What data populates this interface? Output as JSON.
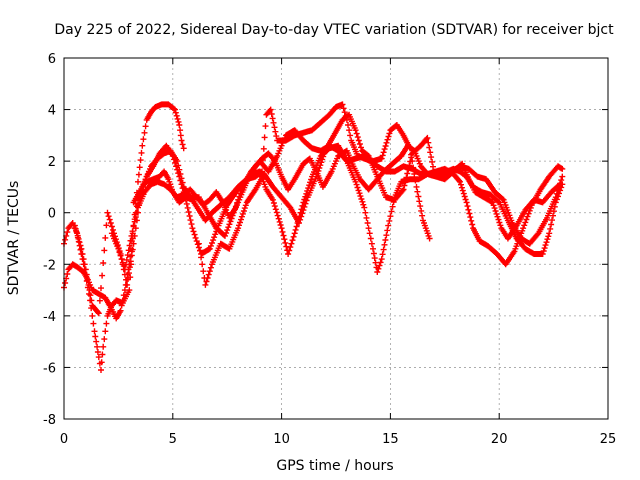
{
  "chart_data": {
    "type": "scatter",
    "title": "Day 225 of 2022, Sidereal Day-to-day VTEC variation (SDTVAR) for receiver bjct",
    "xlabel": "GPS time / hours",
    "ylabel": "SDTVAR / TECUs",
    "xlim": [
      0,
      25
    ],
    "ylim": [
      -8,
      6
    ],
    "xticks": [
      0,
      5,
      10,
      15,
      20,
      25
    ],
    "yticks": [
      -8,
      -6,
      -4,
      -2,
      0,
      2,
      4,
      6
    ],
    "xtick_labels": [
      "0",
      "5",
      "10",
      "15",
      "20",
      "25"
    ],
    "ytick_labels": [
      "-8",
      "-6",
      "-4",
      "-2",
      "0",
      "2",
      "4",
      "6"
    ],
    "grid": true,
    "marker": "+",
    "color": "#ff0000",
    "series": [
      {
        "name": "trace-1",
        "points": [
          [
            0,
            -1.2
          ],
          [
            0.2,
            -0.6
          ],
          [
            0.4,
            -0.4
          ],
          [
            0.6,
            -0.8
          ],
          [
            0.8,
            -1.6
          ],
          [
            1.0,
            -2.4
          ],
          [
            1.2,
            -3.4
          ],
          [
            1.4,
            -4.6
          ],
          [
            1.6,
            -5.6
          ],
          [
            1.7,
            -6.1
          ],
          [
            1.8,
            -5.2
          ],
          [
            2.0,
            -4.0
          ],
          [
            2.2,
            -3.6
          ],
          [
            2.4,
            -3.4
          ],
          [
            2.7,
            -3.5
          ],
          [
            3.0,
            -3.0
          ],
          [
            3.2,
            -0.5
          ],
          [
            3.4,
            1.2
          ],
          [
            3.6,
            2.6
          ],
          [
            3.8,
            3.6
          ],
          [
            4.0,
            3.9
          ],
          [
            4.2,
            4.1
          ],
          [
            4.5,
            4.2
          ],
          [
            4.8,
            4.2
          ],
          [
            5.1,
            4.0
          ],
          [
            5.3,
            3.4
          ],
          [
            5.4,
            2.8
          ],
          [
            5.5,
            2.5
          ]
        ]
      },
      {
        "name": "trace-2",
        "points": [
          [
            0,
            -2.9
          ],
          [
            0.2,
            -2.2
          ],
          [
            0.4,
            -2.0
          ],
          [
            0.6,
            -2.1
          ],
          [
            0.9,
            -2.3
          ],
          [
            1.1,
            -2.6
          ],
          [
            1.3,
            -3.0
          ],
          [
            1.5,
            -3.1
          ],
          [
            1.7,
            -3.2
          ],
          [
            1.9,
            -3.3
          ],
          [
            2.1,
            -3.6
          ],
          [
            2.4,
            -4.1
          ],
          [
            2.6,
            -3.8
          ],
          [
            2.8,
            -3.0
          ],
          [
            3.0,
            -2.0
          ],
          [
            3.2,
            -0.5
          ],
          [
            3.4,
            0.5
          ],
          [
            3.6,
            1.0
          ],
          [
            3.8,
            1.2
          ],
          [
            4.1,
            1.3
          ],
          [
            4.4,
            1.4
          ],
          [
            4.6,
            1.6
          ],
          [
            4.8,
            1.3
          ],
          [
            5.0,
            0.8
          ],
          [
            5.3,
            0.4
          ],
          [
            5.6,
            0.6
          ],
          [
            5.9,
            0.5
          ],
          [
            6.2,
            0.1
          ],
          [
            6.5,
            -0.3
          ],
          [
            6.8,
            0.0
          ],
          [
            7.2,
            0.3
          ],
          [
            7.6,
            0.6
          ],
          [
            8.0,
            1.0
          ],
          [
            8.4,
            1.3
          ],
          [
            8.8,
            1.4
          ],
          [
            9.1,
            1.6
          ],
          [
            9.3,
            3.8
          ],
          [
            9.5,
            4.0
          ],
          [
            9.8,
            2.8
          ],
          [
            10.2,
            2.8
          ],
          [
            10.6,
            3.0
          ],
          [
            11.0,
            3.1
          ],
          [
            11.4,
            3.2
          ],
          [
            11.8,
            3.5
          ],
          [
            12.2,
            3.8
          ],
          [
            12.5,
            4.1
          ],
          [
            12.8,
            4.2
          ],
          [
            13.0,
            3.6
          ],
          [
            13.2,
            2.8
          ],
          [
            13.5,
            2.2
          ],
          [
            13.8,
            2.1
          ],
          [
            14.1,
            2.0
          ],
          [
            14.4,
            1.8
          ],
          [
            14.8,
            1.6
          ],
          [
            15.2,
            1.6
          ],
          [
            15.6,
            1.8
          ],
          [
            16.0,
            1.7
          ],
          [
            16.4,
            1.5
          ],
          [
            16.8,
            1.5
          ],
          [
            17.2,
            1.5
          ],
          [
            17.6,
            1.6
          ],
          [
            17.9,
            1.7
          ],
          [
            18.2,
            1.6
          ],
          [
            18.5,
            1.4
          ],
          [
            18.8,
            1.0
          ],
          [
            19.2,
            0.8
          ],
          [
            19.6,
            0.7
          ],
          [
            20.0,
            0.4
          ],
          [
            20.4,
            -0.3
          ],
          [
            20.8,
            -1.0
          ],
          [
            21.2,
            -1.4
          ],
          [
            21.6,
            -1.6
          ],
          [
            22.0,
            -1.6
          ],
          [
            22.3,
            -0.8
          ],
          [
            22.6,
            0.4
          ],
          [
            22.9,
            1.1
          ]
        ]
      },
      {
        "name": "trace-3",
        "points": [
          [
            0.5,
            -0.5
          ],
          [
            0.8,
            -1.4
          ],
          [
            1.0,
            -2.2
          ],
          [
            1.3,
            -3.6
          ],
          [
            1.6,
            -3.9
          ],
          [
            2.0,
            0.0
          ],
          [
            2.3,
            -0.8
          ],
          [
            2.6,
            -1.6
          ],
          [
            2.9,
            -2.8
          ],
          [
            3.2,
            -1.2
          ],
          [
            3.5,
            0.6
          ],
          [
            3.8,
            1.4
          ],
          [
            4.1,
            1.8
          ],
          [
            4.4,
            2.3
          ],
          [
            4.7,
            2.6
          ],
          [
            5.0,
            2.2
          ],
          [
            5.3,
            1.4
          ],
          [
            5.6,
            0.5
          ],
          [
            5.9,
            -0.6
          ],
          [
            6.3,
            -1.6
          ],
          [
            6.7,
            -1.4
          ],
          [
            7.1,
            -0.5
          ],
          [
            7.5,
            0.3
          ],
          [
            7.9,
            0.8
          ],
          [
            8.3,
            1.2
          ],
          [
            8.7,
            1.5
          ],
          [
            9.0,
            1.6
          ],
          [
            9.3,
            0.9
          ],
          [
            9.6,
            0.5
          ],
          [
            10.0,
            -0.6
          ],
          [
            10.3,
            -1.6
          ],
          [
            10.6,
            -0.8
          ],
          [
            11.0,
            0.4
          ],
          [
            11.4,
            1.4
          ],
          [
            11.8,
            2.2
          ],
          [
            12.2,
            2.5
          ],
          [
            12.6,
            2.6
          ],
          [
            13.0,
            2.0
          ],
          [
            13.4,
            1.2
          ],
          [
            13.8,
            0.2
          ],
          [
            14.2,
            -1.4
          ],
          [
            14.4,
            -2.3
          ],
          [
            14.6,
            -1.8
          ],
          [
            14.9,
            -0.5
          ],
          [
            15.2,
            0.6
          ],
          [
            15.5,
            1.2
          ],
          [
            15.9,
            1.3
          ],
          [
            16.3,
            1.3
          ],
          [
            16.7,
            1.5
          ],
          [
            17.1,
            1.6
          ],
          [
            17.5,
            1.7
          ],
          [
            17.9,
            1.5
          ],
          [
            18.2,
            1.2
          ],
          [
            18.5,
            0.4
          ],
          [
            18.8,
            -0.6
          ],
          [
            19.1,
            -1.1
          ],
          [
            19.5,
            -1.3
          ],
          [
            19.9,
            -1.6
          ],
          [
            20.3,
            -2.0
          ],
          [
            20.7,
            -1.5
          ],
          [
            21.1,
            -0.6
          ],
          [
            21.5,
            0.3
          ],
          [
            21.9,
            0.9
          ],
          [
            22.3,
            1.4
          ],
          [
            22.7,
            1.8
          ],
          [
            22.9,
            1.7
          ]
        ]
      },
      {
        "name": "trace-4",
        "points": [
          [
            3.2,
            0.4
          ],
          [
            3.6,
            1.0
          ],
          [
            4.0,
            1.8
          ],
          [
            4.3,
            2.1
          ],
          [
            4.6,
            2.3
          ],
          [
            4.9,
            2.4
          ],
          [
            5.2,
            2.0
          ],
          [
            5.5,
            1.0
          ],
          [
            5.8,
            0.6
          ],
          [
            6.2,
            0.6
          ],
          [
            6.6,
            0.0
          ],
          [
            7.0,
            -0.6
          ],
          [
            7.4,
            -0.9
          ],
          [
            7.8,
            0.0
          ],
          [
            8.2,
            1.0
          ],
          [
            8.6,
            1.6
          ],
          [
            9.0,
            2.0
          ],
          [
            9.4,
            1.6
          ],
          [
            9.8,
            2.2
          ],
          [
            10.2,
            3.0
          ],
          [
            10.6,
            3.2
          ],
          [
            11.0,
            2.8
          ],
          [
            11.4,
            2.5
          ],
          [
            11.8,
            2.4
          ],
          [
            12.2,
            2.6
          ],
          [
            12.6,
            2.4
          ],
          [
            13.0,
            2.0
          ],
          [
            13.4,
            2.1
          ],
          [
            13.8,
            2.2
          ],
          [
            14.2,
            2.0
          ],
          [
            14.6,
            2.1
          ],
          [
            15.0,
            3.2
          ],
          [
            15.3,
            3.4
          ],
          [
            15.6,
            3.0
          ],
          [
            15.9,
            2.5
          ],
          [
            16.2,
            1.0
          ],
          [
            16.5,
            -0.3
          ],
          [
            16.8,
            -1.0
          ]
        ]
      },
      {
        "name": "trace-5",
        "points": [
          [
            6.2,
            -1.2
          ],
          [
            6.5,
            -2.8
          ],
          [
            6.8,
            -2.0
          ],
          [
            7.2,
            -1.2
          ],
          [
            7.6,
            -1.4
          ],
          [
            8.0,
            -0.6
          ],
          [
            8.4,
            0.4
          ],
          [
            8.8,
            0.9
          ],
          [
            9.2,
            1.5
          ],
          [
            9.6,
            1.0
          ],
          [
            10.0,
            0.6
          ],
          [
            10.4,
            0.2
          ],
          [
            10.8,
            -0.4
          ],
          [
            11.2,
            0.6
          ],
          [
            11.6,
            1.4
          ],
          [
            12.0,
            2.4
          ],
          [
            12.4,
            3.0
          ],
          [
            12.8,
            3.6
          ],
          [
            13.1,
            3.8
          ],
          [
            13.4,
            3.2
          ],
          [
            13.7,
            2.4
          ],
          [
            14.0,
            2.2
          ],
          [
            14.4,
            1.4
          ],
          [
            14.8,
            0.6
          ],
          [
            15.2,
            0.5
          ],
          [
            15.6,
            0.9
          ],
          [
            16.0,
            2.3
          ],
          [
            16.4,
            2.6
          ],
          [
            16.7,
            2.9
          ],
          [
            17.0,
            1.6
          ],
          [
            17.4,
            1.4
          ],
          [
            17.8,
            1.6
          ],
          [
            18.2,
            1.8
          ],
          [
            18.6,
            1.7
          ],
          [
            19.0,
            1.4
          ],
          [
            19.4,
            1.3
          ],
          [
            19.8,
            0.8
          ],
          [
            20.2,
            0.5
          ],
          [
            20.6,
            -0.4
          ],
          [
            21.0,
            -1.0
          ],
          [
            21.4,
            -1.2
          ],
          [
            21.8,
            -0.8
          ],
          [
            22.2,
            -0.2
          ],
          [
            22.6,
            0.6
          ],
          [
            22.9,
            1.4
          ]
        ]
      },
      {
        "name": "trace-6",
        "points": [
          [
            2.2,
            -0.8
          ],
          [
            2.5,
            -1.4
          ],
          [
            2.8,
            -2.2
          ],
          [
            3.1,
            -0.9
          ],
          [
            3.4,
            0.2
          ],
          [
            3.7,
            0.8
          ],
          [
            4.0,
            1.1
          ],
          [
            4.3,
            1.2
          ],
          [
            4.6,
            1.1
          ],
          [
            4.9,
            0.9
          ],
          [
            5.2,
            0.6
          ],
          [
            5.5,
            0.7
          ],
          [
            5.8,
            0.9
          ],
          [
            6.1,
            0.6
          ],
          [
            6.4,
            0.3
          ],
          [
            6.7,
            0.5
          ],
          [
            7.0,
            0.8
          ],
          [
            7.3,
            0.4
          ],
          [
            7.6,
            -0.2
          ],
          [
            7.9,
            0.2
          ],
          [
            8.2,
            0.8
          ],
          [
            8.5,
            1.4
          ],
          [
            8.8,
            1.8
          ],
          [
            9.1,
            2.1
          ],
          [
            9.4,
            2.3
          ],
          [
            9.7,
            2.0
          ],
          [
            10.0,
            1.4
          ],
          [
            10.3,
            0.9
          ],
          [
            10.6,
            1.3
          ],
          [
            11.0,
            1.9
          ],
          [
            11.3,
            2.1
          ],
          [
            11.6,
            1.6
          ],
          [
            11.9,
            1.0
          ],
          [
            12.3,
            1.6
          ],
          [
            12.6,
            2.2
          ],
          [
            13.0,
            2.4
          ],
          [
            13.3,
            1.8
          ],
          [
            13.6,
            1.3
          ],
          [
            14.0,
            0.9
          ],
          [
            14.3,
            1.2
          ],
          [
            14.7,
            1.6
          ],
          [
            15.1,
            1.9
          ],
          [
            15.5,
            2.2
          ],
          [
            15.8,
            2.6
          ],
          [
            16.1,
            2.4
          ],
          [
            16.4,
            1.8
          ],
          [
            16.7,
            1.5
          ],
          [
            17.1,
            1.4
          ],
          [
            17.5,
            1.3
          ],
          [
            17.9,
            1.6
          ],
          [
            18.3,
            1.9
          ],
          [
            18.6,
            1.3
          ],
          [
            18.9,
            0.8
          ],
          [
            19.3,
            0.6
          ],
          [
            19.7,
            0.4
          ],
          [
            20.1,
            -0.6
          ],
          [
            20.4,
            -1.0
          ],
          [
            20.8,
            -0.5
          ],
          [
            21.2,
            0.1
          ],
          [
            21.6,
            0.5
          ],
          [
            22.0,
            0.4
          ],
          [
            22.4,
            0.8
          ],
          [
            22.8,
            1.1
          ]
        ]
      }
    ]
  }
}
